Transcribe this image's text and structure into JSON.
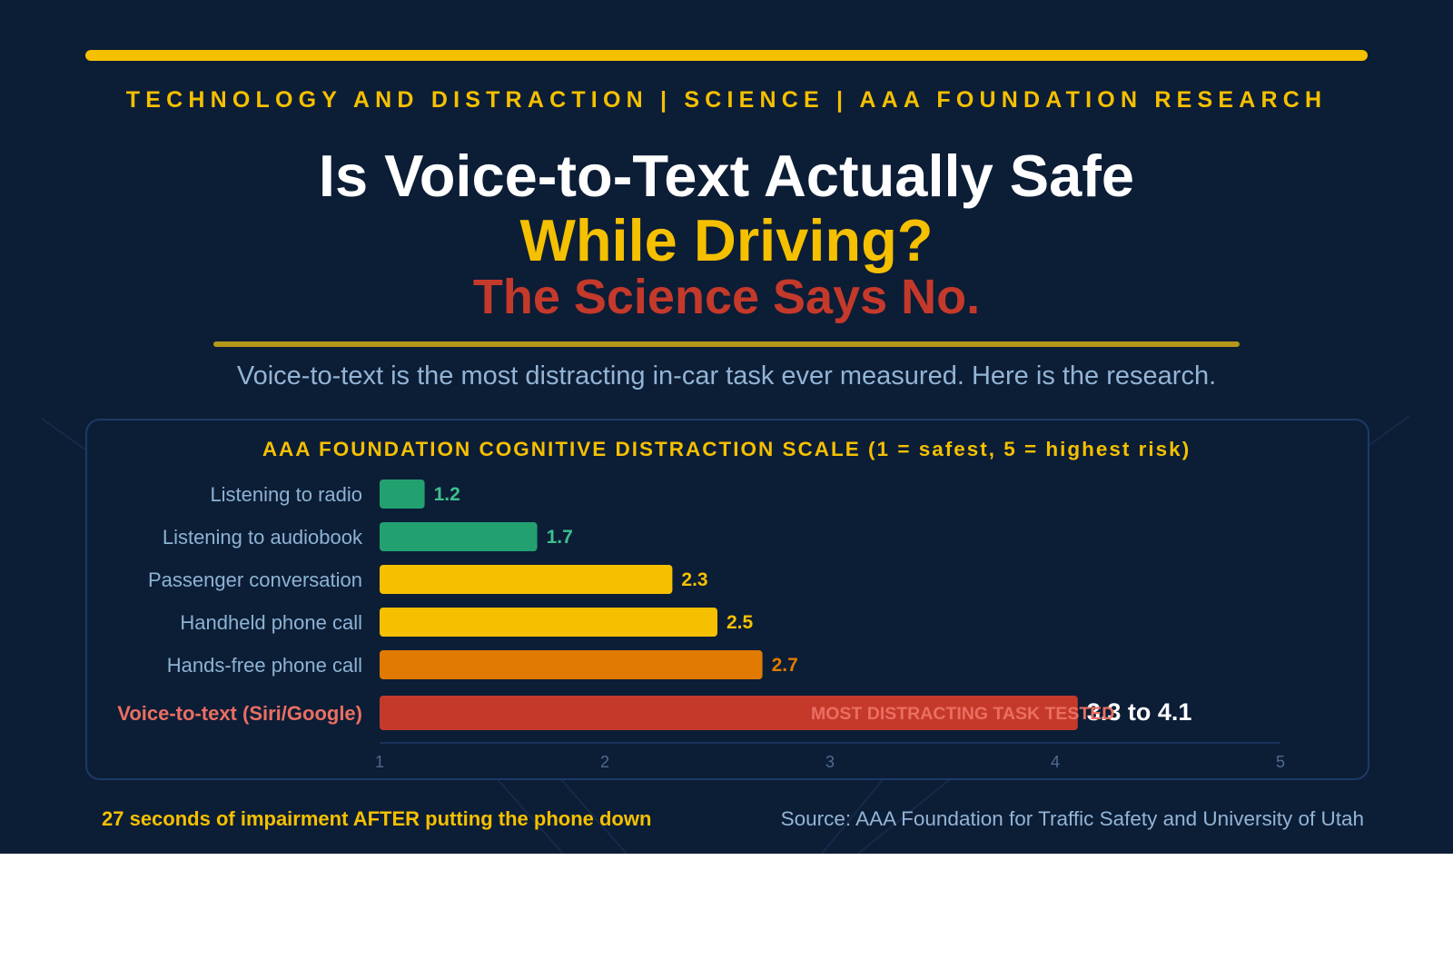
{
  "header": {
    "kicker": "TECHNOLOGY AND DISTRACTION | SCIENCE | AAA FOUNDATION RESEARCH",
    "title_line1": "Is Voice-to-Text Actually Safe",
    "title_line2": "While Driving?",
    "title_line3": "The Science Says No.",
    "subtitle": "Voice-to-text is the most distracting in-car task ever measured. Here is the research."
  },
  "chart_data": {
    "type": "bar",
    "orientation": "horizontal",
    "title": "AAA FOUNDATION COGNITIVE DISTRACTION SCALE (1 = safest, 5 = highest risk)",
    "categories": [
      "Listening to radio",
      "Listening to audiobook",
      "Passenger conversation",
      "Handheld phone call",
      "Hands-free phone call",
      "Voice-to-text (Siri/Google)"
    ],
    "values": [
      1.2,
      1.7,
      2.3,
      2.5,
      2.7,
      4.1
    ],
    "value_labels": [
      "1.2",
      "1.7",
      "2.3",
      "2.5",
      "2.7",
      "3.3 to 4.1"
    ],
    "colors": [
      "#23a070",
      "#23a070",
      "#f5c000",
      "#f5c000",
      "#e07a00",
      "#c5392b"
    ],
    "label_colors": [
      "#8db3d3",
      "#8db3d3",
      "#8db3d3",
      "#8db3d3",
      "#8db3d3",
      "#ea6f61"
    ],
    "value_label_colors": [
      "#3ec08d",
      "#3ec08d",
      "#f5c000",
      "#f5c000",
      "#e07a00",
      "#ffffff"
    ],
    "annotation": {
      "text": "MOST DISTRACTING TASK TESTED",
      "category_index": 5,
      "color": "#ea6f61"
    },
    "xlim": [
      1,
      5
    ],
    "xticks": [
      "1",
      "2",
      "3",
      "4",
      "5"
    ],
    "grid": false,
    "legend": "none"
  },
  "footer": {
    "note": "27 seconds of impairment AFTER putting the phone down",
    "source": "Source: AAA Foundation for Traffic Safety and University of Utah"
  },
  "colors": {
    "background": "#0c1d36",
    "accent": "#f5c000",
    "danger": "#c5392b",
    "muted_text": "#93b4d4"
  }
}
